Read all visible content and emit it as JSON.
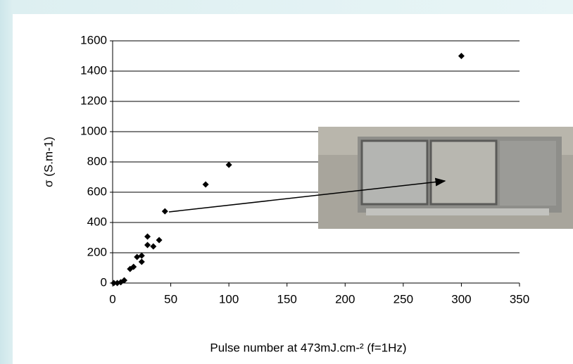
{
  "chart_data": {
    "type": "scatter",
    "x_label": "Pulse number at 473mJ.cm-² (f=1Hz)",
    "y_label": "σ (S.m-1)",
    "series": [
      {
        "color": "#000000",
        "x": [
          1,
          4,
          7,
          10,
          15,
          18,
          21,
          25,
          25,
          30,
          30,
          35,
          40,
          45,
          80,
          100,
          300
        ],
        "values": [
          0,
          0,
          5,
          18,
          93,
          107,
          172,
          140,
          181,
          307,
          251,
          242,
          284,
          474,
          651,
          781,
          1500
        ]
      }
    ],
    "xlim": [
      0,
      350
    ],
    "xticks": [
      0,
      50,
      100,
      150,
      200,
      250,
      300,
      350
    ],
    "ylim": [
      0,
      1600
    ],
    "yticks": [
      0,
      200,
      400,
      600,
      800,
      1000,
      1200,
      1400,
      1600
    ],
    "grid": true
  }
}
